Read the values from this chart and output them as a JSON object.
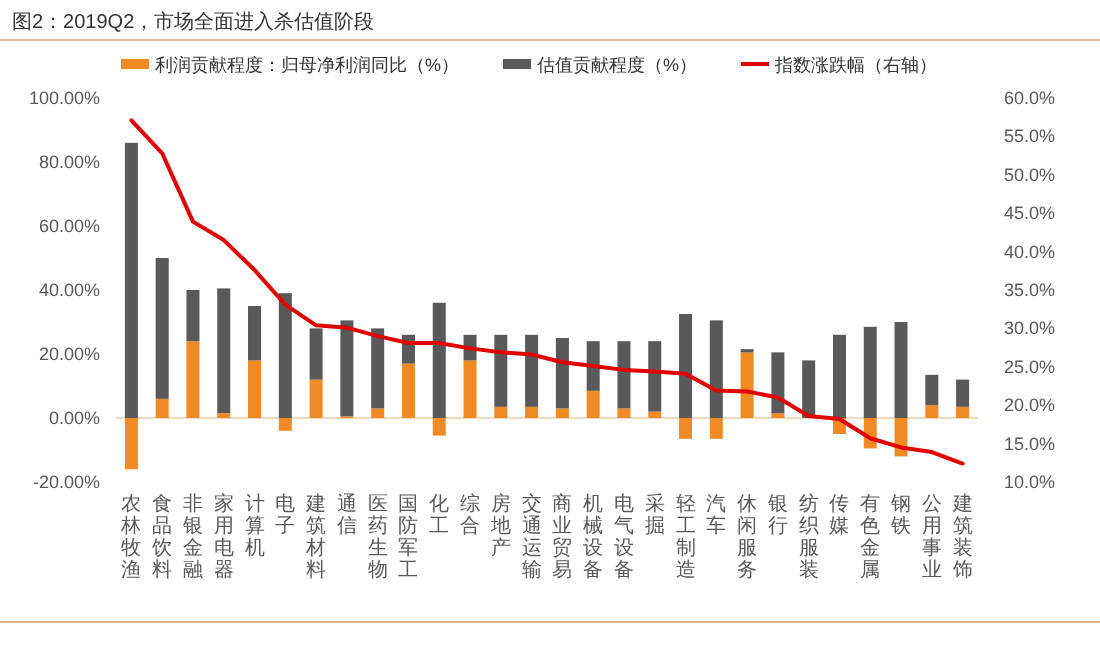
{
  "chart_data": {
    "type": "bar",
    "title": "图2：2019Q2，市场全面进入杀估值阶段",
    "stacked": true,
    "legend": "top",
    "categories": [
      "农林牧渔",
      "食品饮料",
      "非银金融",
      "家用电器",
      "计算机",
      "电子",
      "建筑材料",
      "通信",
      "医药生物",
      "国防军工",
      "化工",
      "综合",
      "房地产",
      "交通运输",
      "商业贸易",
      "机械设备",
      "电气设备",
      "采掘",
      "轻工制造",
      "汽车",
      "休闲服务",
      "银行",
      "纺织服装",
      "传媒",
      "有色金属",
      "钢铁",
      "公用事业",
      "建筑装饰"
    ],
    "series": [
      {
        "name": "利润贡献程度：归母净利润同比（%）",
        "color": "#f08a24",
        "values": [
          -16,
          6,
          24,
          1.5,
          18,
          -4,
          12,
          0.5,
          3,
          17,
          -5.5,
          18,
          3.5,
          3.5,
          3,
          8.5,
          3,
          2,
          -6.5,
          -6.5,
          20.5,
          1.5,
          null,
          -5,
          -9.5,
          -12,
          4,
          3.5
        ]
      },
      {
        "name": "估值贡献程度（%）",
        "color": "#595959",
        "values": [
          86,
          44,
          16,
          39,
          17,
          39,
          16,
          30,
          25,
          9,
          36,
          8,
          22.5,
          22.5,
          22,
          15.5,
          21,
          22,
          32.5,
          30.5,
          1,
          19,
          18,
          26,
          28.5,
          30,
          9.5,
          8.5
        ]
      },
      {
        "name": "指数涨跌幅（右轴）",
        "type": "line",
        "axis": "y2",
        "color": "#e00000",
        "values": [
          57.1,
          52.8,
          43.9,
          41.5,
          37.6,
          33.1,
          30.4,
          30.1,
          29,
          28.1,
          28.1,
          27.4,
          26.9,
          26.6,
          25.6,
          25.1,
          24.6,
          24.4,
          24.1,
          21.9,
          21.8,
          21,
          18.6,
          18.2,
          15.7,
          14.5,
          13.9,
          12.4
        ]
      }
    ],
    "ylim": [
      -20,
      100
    ],
    "yticks": [
      {
        "value": -20,
        "label": "-20.00%"
      },
      {
        "value": 0,
        "label": "0.00%"
      },
      {
        "value": 20,
        "label": "20.00%"
      },
      {
        "value": 40,
        "label": "40.00%"
      },
      {
        "value": 60,
        "label": "60.00%"
      },
      {
        "value": 80,
        "label": "80.00%"
      },
      {
        "value": 100,
        "label": "100.00%"
      }
    ],
    "ref_lines": [
      {
        "axis": "y",
        "value": 0,
        "color": "#f3d9bf"
      }
    ],
    "y2lim": [
      10,
      60
    ],
    "y2ticks": [
      {
        "value": 10,
        "label": "10.0%"
      },
      {
        "value": 15,
        "label": "15.0%"
      },
      {
        "value": 20,
        "label": "20.0%"
      },
      {
        "value": 25,
        "label": "25.0%"
      },
      {
        "value": 30,
        "label": "30.0%"
      },
      {
        "value": 35,
        "label": "35.0%"
      },
      {
        "value": 40,
        "label": "40.0%"
      },
      {
        "value": 45,
        "label": "45.0%"
      },
      {
        "value": 50,
        "label": "50.0%"
      },
      {
        "value": 55,
        "label": "55.0%"
      },
      {
        "value": 60,
        "label": "60.0%"
      }
    ]
  }
}
